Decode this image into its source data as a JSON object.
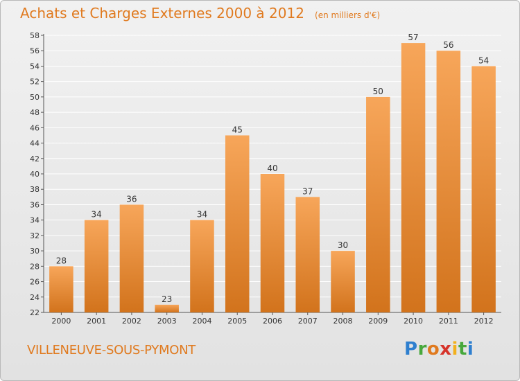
{
  "title": "Achats et Charges Externes 2000 à 2012",
  "subtitle": "(en milliers d'€)",
  "city": "VILLENEUVE-SOUS-PYMONT",
  "logo_text": "Proxiti",
  "colors": {
    "accent": "#e07a1f",
    "bar_light": "#f7a65a",
    "bar_dark": "#d2731c",
    "grid": "#ffffff",
    "label": "#333333"
  },
  "chart_data": {
    "type": "bar",
    "categories": [
      "2000",
      "2001",
      "2002",
      "2003",
      "2004",
      "2005",
      "2006",
      "2007",
      "2008",
      "2009",
      "2010",
      "2011",
      "2012"
    ],
    "values": [
      28,
      34,
      36,
      23,
      34,
      45,
      40,
      37,
      30,
      50,
      57,
      56,
      54
    ],
    "ylim": [
      22,
      58
    ],
    "yticks": [
      22,
      24,
      26,
      28,
      30,
      32,
      34,
      36,
      38,
      40,
      42,
      44,
      46,
      48,
      50,
      52,
      54,
      56,
      58
    ],
    "grid": true,
    "data_labels": true,
    "legend": "none"
  }
}
